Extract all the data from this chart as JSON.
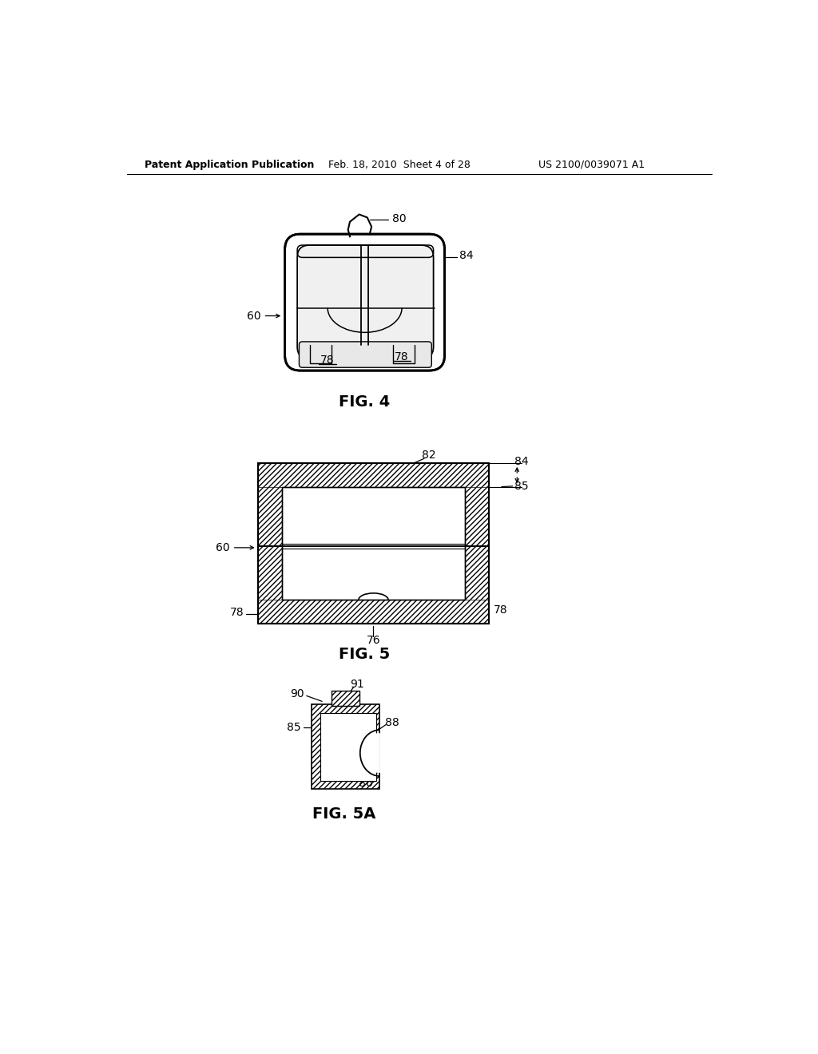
{
  "bg_color": "#ffffff",
  "header_left": "Patent Application Publication",
  "header_mid": "Feb. 18, 2010  Sheet 4 of 28",
  "header_right": "US 2100/0039071 A1",
  "fig4_label": "FIG. 4",
  "fig5_label": "FIG. 5",
  "fig5a_label": "FIG. 5A"
}
